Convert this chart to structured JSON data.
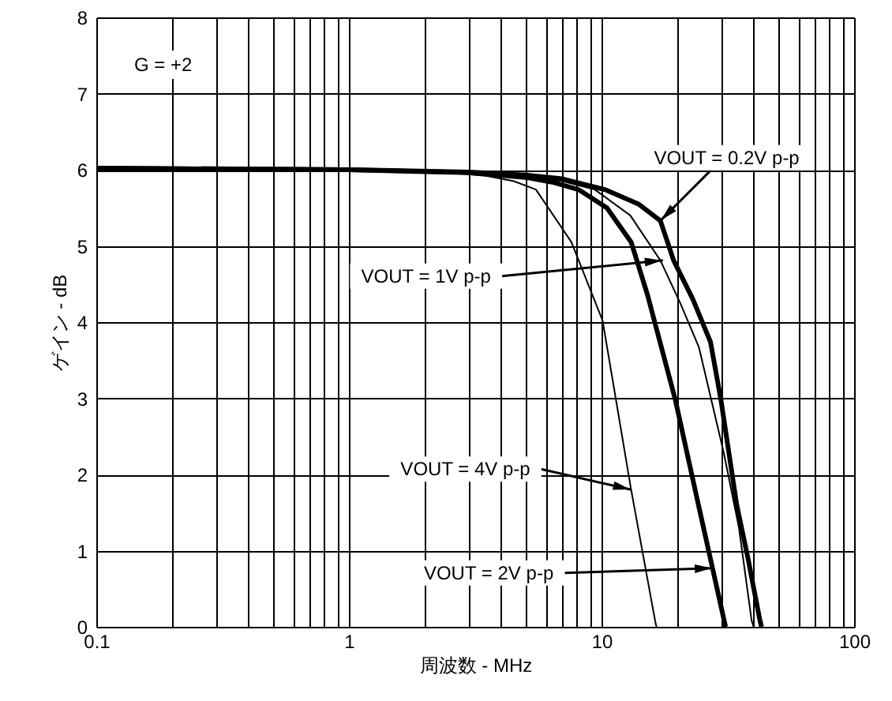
{
  "chart_data": {
    "type": "line",
    "xlabel": "周波数 - MHz",
    "ylabel": "ゲイン - dB",
    "log": "x",
    "grid": true,
    "marker": "none",
    "line_style": "solid",
    "xlim": [
      0.1,
      100
    ],
    "ylim": [
      0,
      8
    ],
    "xticks": [
      0.1,
      {
        "value": 0.2,
        "label": null
      },
      {
        "value": 0.3,
        "label": null
      },
      {
        "value": 0.4,
        "label": null
      },
      {
        "value": 0.5,
        "label": null
      },
      {
        "value": 0.6,
        "label": null
      },
      {
        "value": 0.7,
        "label": null
      },
      {
        "value": 0.8,
        "label": null
      },
      {
        "value": 0.9,
        "label": null
      },
      1,
      {
        "value": 2,
        "label": null
      },
      {
        "value": 3,
        "label": null
      },
      {
        "value": 4,
        "label": null
      },
      {
        "value": 5,
        "label": null
      },
      {
        "value": 6,
        "label": null
      },
      {
        "value": 7,
        "label": null
      },
      {
        "value": 8,
        "label": null
      },
      {
        "value": 9,
        "label": null
      },
      10,
      {
        "value": 20,
        "label": null
      },
      {
        "value": 30,
        "label": null
      },
      {
        "value": 40,
        "label": null
      },
      {
        "value": 50,
        "label": null
      },
      {
        "value": 60,
        "label": null
      },
      {
        "value": 70,
        "label": null
      },
      {
        "value": 80,
        "label": null
      },
      {
        "value": 90,
        "label": null
      },
      100
    ],
    "yticks": [
      0,
      1,
      2,
      3,
      4,
      5,
      6,
      7,
      8
    ],
    "series": [
      {
        "color": "#000000",
        "x": [
          0.1,
          1,
          3,
          5,
          7,
          10.3,
          14,
          17.1,
          19.3,
          23,
          27,
          29.7,
          34.3,
          38,
          42.4,
          43
        ],
        "values": [
          6.02,
          6.0,
          5.97,
          5.93,
          5.88,
          5.74,
          5.55,
          5.33,
          4.81,
          4.3,
          3.74,
          2.98,
          1.6,
          0.9,
          0.08,
          0
        ]
      },
      {
        "color": "#000000",
        "x": [
          0.1,
          1,
          3,
          5,
          7,
          9.4,
          13,
          17.1,
          20.5,
          24.3,
          30.5,
          35,
          39.3,
          40
        ],
        "values": [
          6.02,
          6.0,
          5.97,
          5.92,
          5.85,
          5.74,
          5.4,
          4.81,
          4.25,
          3.67,
          2.28,
          1.3,
          0.08,
          0
        ]
      },
      {
        "color": "#000000",
        "x": [
          0.1,
          1,
          3,
          5,
          6.5,
          8.1,
          10.5,
          13.1,
          15.2,
          19.6,
          24.2,
          30.6,
          31
        ],
        "values": [
          6.02,
          6.0,
          5.96,
          5.9,
          5.83,
          5.74,
          5.5,
          5.05,
          4.36,
          2.98,
          1.6,
          0.08,
          0
        ]
      },
      {
        "color": "#000000",
        "x": [
          0.1,
          1,
          2.5,
          3.5,
          4.5,
          5.5,
          7.6,
          10.1,
          13.1,
          16.3,
          16.5
        ],
        "values": [
          6.02,
          6.0,
          5.96,
          5.92,
          5.85,
          5.74,
          5.05,
          4.02,
          1.8,
          0.08,
          0
        ]
      }
    ],
    "annotations": [
      "G = +2",
      {
        "text": "VOUT = 0.2V p-p",
        "x": 17.1,
        "y": 5.33
      },
      {
        "text": "VOUT = 1V p-p",
        "x": 17.5,
        "y": 4.81
      },
      {
        "text": "VOUT = 4V p-p",
        "x": 13.1,
        "y": 1.8
      },
      {
        "text": "VOUT = 2V p-p",
        "x": 27.6,
        "y": 0.77
      }
    ]
  }
}
